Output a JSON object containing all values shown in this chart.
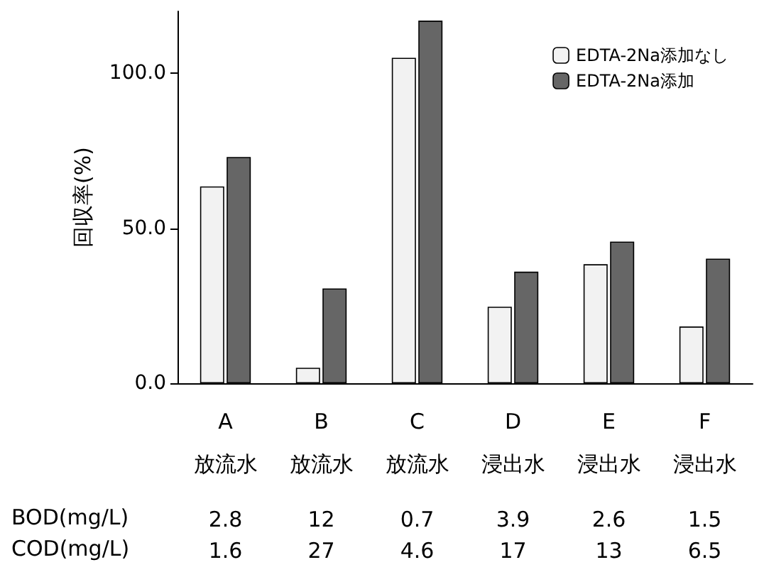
{
  "chart_data": {
    "type": "bar",
    "ylabel": "回収率(%)",
    "categories": [
      "A\n放流水",
      "B\n放流水",
      "C\n放流水",
      "D\n浸出水",
      "E\n浸出水",
      "F\n浸出水"
    ],
    "series": [
      {
        "name": "EDTA-2Na添加なし",
        "color": "#f2f2f2",
        "values": [
          63.5,
          5,
          105,
          24.7,
          38.4,
          18.3
        ]
      },
      {
        "name": "EDTA-2Na添加",
        "color": "#666666",
        "values": [
          73,
          30.6,
          117,
          36,
          45.7,
          40.2
        ]
      }
    ],
    "ylim": [
      0,
      120
    ],
    "yticks": [
      {
        "value": 0,
        "label": "0.0"
      },
      {
        "value": 50,
        "label": "50.0"
      },
      {
        "value": 100,
        "label": "100.0"
      }
    ],
    "grid": false,
    "legend": "top right",
    "annotations": [
      "BOD(mg/L)",
      "2.8",
      "12",
      "0.7",
      "3.9",
      "2.6",
      "1.5",
      "COD(mg/L)",
      "1.6",
      "27",
      "4.6",
      "17",
      "13",
      "6.5"
    ]
  }
}
